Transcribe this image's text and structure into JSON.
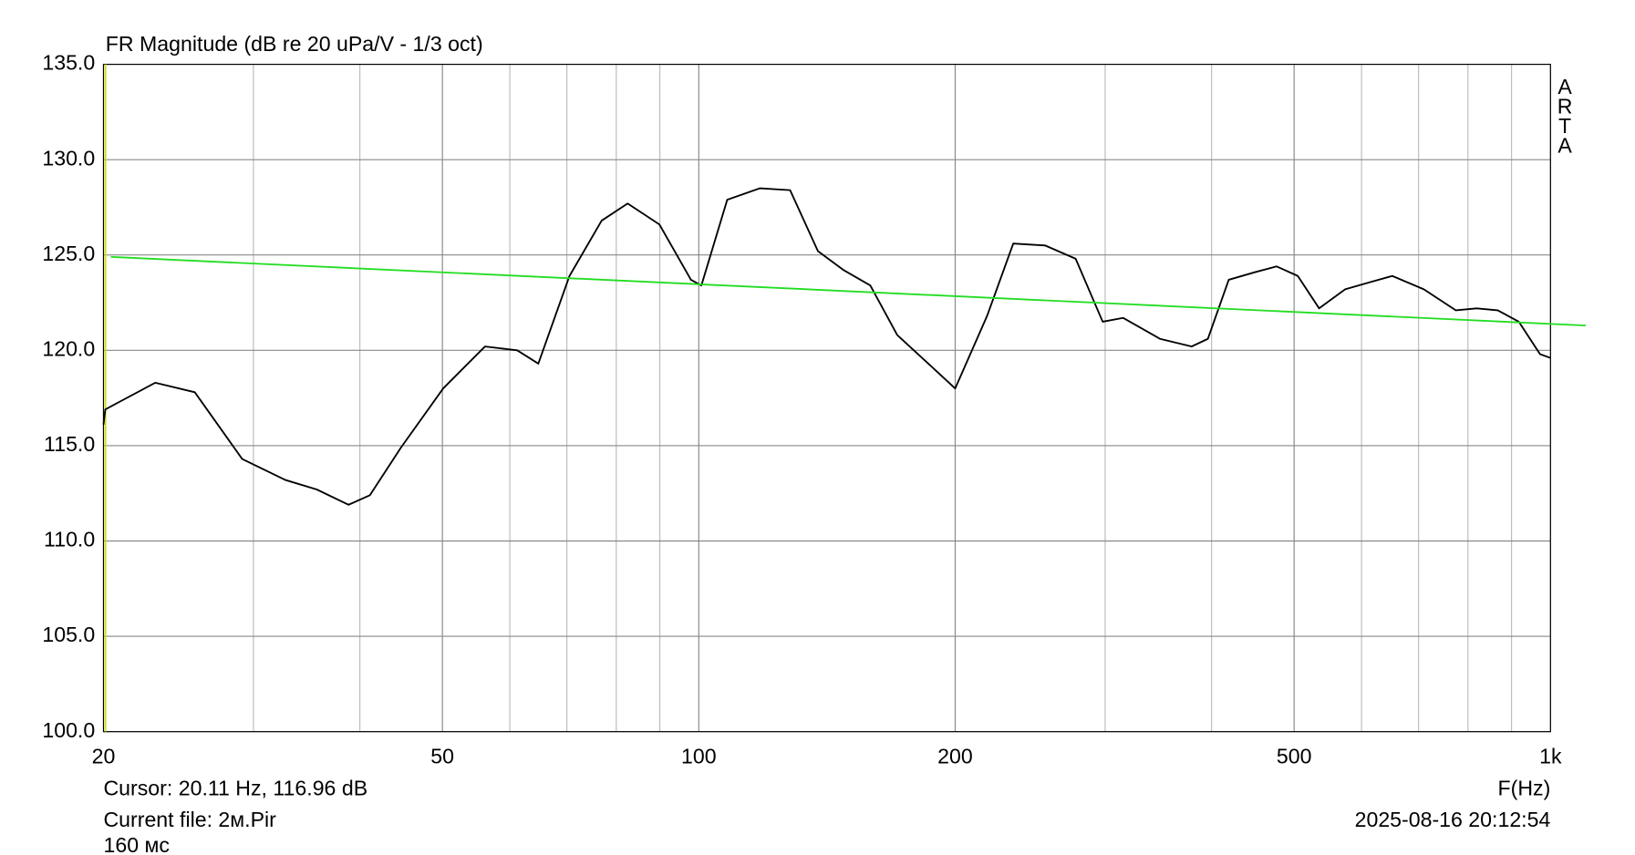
{
  "chart_data": {
    "type": "line",
    "title": "FR Magnitude (dB re 20 uPa/V - 1/3 oct)",
    "watermark": "ARTA",
    "x_label": "F(Hz)",
    "cursor_text": "Cursor: 20.11 Hz, 116.96 dB",
    "cursor_x": 20.11,
    "cursor_color": "#d4e000",
    "file_text": "Current file: 2м.Pir",
    "window_text": "160 мс",
    "timestamp": "2025-08-16  20:12:54",
    "log_x": true,
    "grid": true,
    "xlim": [
      20,
      1000
    ],
    "ylim": [
      100,
      135
    ],
    "xticks": [
      20,
      50,
      100,
      200,
      500,
      {
        "value": 1000,
        "label": "1k"
      }
    ],
    "x_minor_grid": [
      30,
      40,
      60,
      70,
      80,
      90,
      300,
      400,
      600,
      700,
      800,
      900
    ],
    "yticks": [
      {
        "value": 100,
        "label": "100.0"
      },
      {
        "value": 105,
        "label": "105.0"
      },
      {
        "value": 110,
        "label": "110.0"
      },
      {
        "value": 115,
        "label": "115.0"
      },
      {
        "value": 120,
        "label": "120.0"
      },
      {
        "value": 125,
        "label": "125.0"
      },
      {
        "value": 130,
        "label": "130.0"
      },
      {
        "value": 135,
        "label": "135.0"
      }
    ],
    "series": [
      {
        "color": "#000000",
        "x": [
          20,
          20.1,
          23,
          25.6,
          29.1,
          32.7,
          35.6,
          38.8,
          41.1,
          44.7,
          50.1,
          56.1,
          61.2,
          64.8,
          70.5,
          76.9,
          82.5,
          89.9,
          97.9,
          100.7,
          108,
          118,
          128,
          138,
          148,
          159,
          171,
          186,
          200,
          218,
          234,
          255,
          277,
          298,
          315,
          348,
          379,
          396,
          419,
          450,
          477,
          505,
          535,
          574,
          617,
          652,
          710,
          774,
          819,
          867,
          918,
          972,
          1000
        ],
        "values": [
          116.1,
          116.9,
          118.3,
          117.8,
          114.3,
          113.2,
          112.7,
          111.9,
          112.4,
          114.9,
          118.0,
          120.2,
          120.0,
          119.3,
          123.9,
          126.8,
          127.7,
          126.6,
          123.7,
          123.4,
          127.9,
          128.5,
          128.4,
          125.2,
          124.2,
          123.4,
          120.8,
          119.3,
          118.0,
          121.8,
          125.6,
          125.5,
          124.8,
          121.5,
          121.7,
          120.6,
          120.2,
          120.6,
          123.7,
          124.1,
          124.4,
          123.9,
          122.2,
          123.2,
          123.6,
          123.9,
          123.2,
          122.1,
          122.2,
          122.1,
          121.5,
          119.8,
          119.6
        ]
      },
      {
        "color": "#22dd22",
        "x": [
          20.4,
          1100
        ],
        "values": [
          124.9,
          121.3
        ]
      }
    ]
  }
}
